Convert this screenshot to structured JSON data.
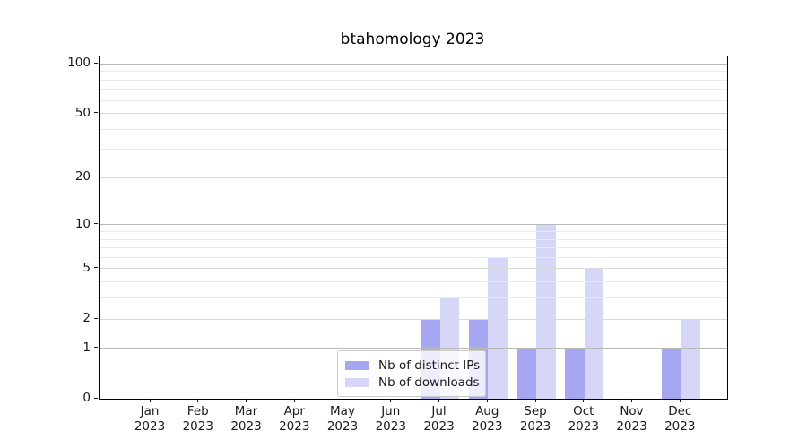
{
  "chart_data": {
    "type": "bar",
    "title": "btahomology 2023",
    "x_months": [
      "Jan",
      "Feb",
      "Mar",
      "Apr",
      "May",
      "Jun",
      "Jul",
      "Aug",
      "Sep",
      "Oct",
      "Nov",
      "Dec"
    ],
    "x_year": "2023",
    "series": [
      {
        "name": "Nb of distinct IPs",
        "color": "rgba(0,0,215,0.35)",
        "values": [
          0,
          0,
          0,
          0,
          0,
          0,
          2,
          2,
          1,
          1,
          0,
          1
        ]
      },
      {
        "name": "Nb of downloads",
        "color": "rgba(0,0,215,0.16)",
        "values": [
          0,
          0,
          0,
          0,
          0,
          0,
          3,
          6,
          10,
          5,
          0,
          2
        ]
      }
    ],
    "y_scale": "log1p",
    "ylim": [
      0,
      111
    ],
    "y_ticks": [
      0,
      1,
      2,
      5,
      10,
      20,
      50,
      100
    ],
    "y_minor_grid": [
      3,
      4,
      6,
      7,
      8,
      9,
      30,
      40,
      60,
      70,
      80,
      90
    ],
    "grid": true,
    "legend_position": "lower center"
  },
  "colors": {
    "grid_decade": "#b9b9b9",
    "grid_labeled": "#d9d9d9",
    "grid_minor": "#ebebeb",
    "spine": "#000000",
    "text": "#1a1a1a",
    "legend_border": "#cccccc"
  }
}
